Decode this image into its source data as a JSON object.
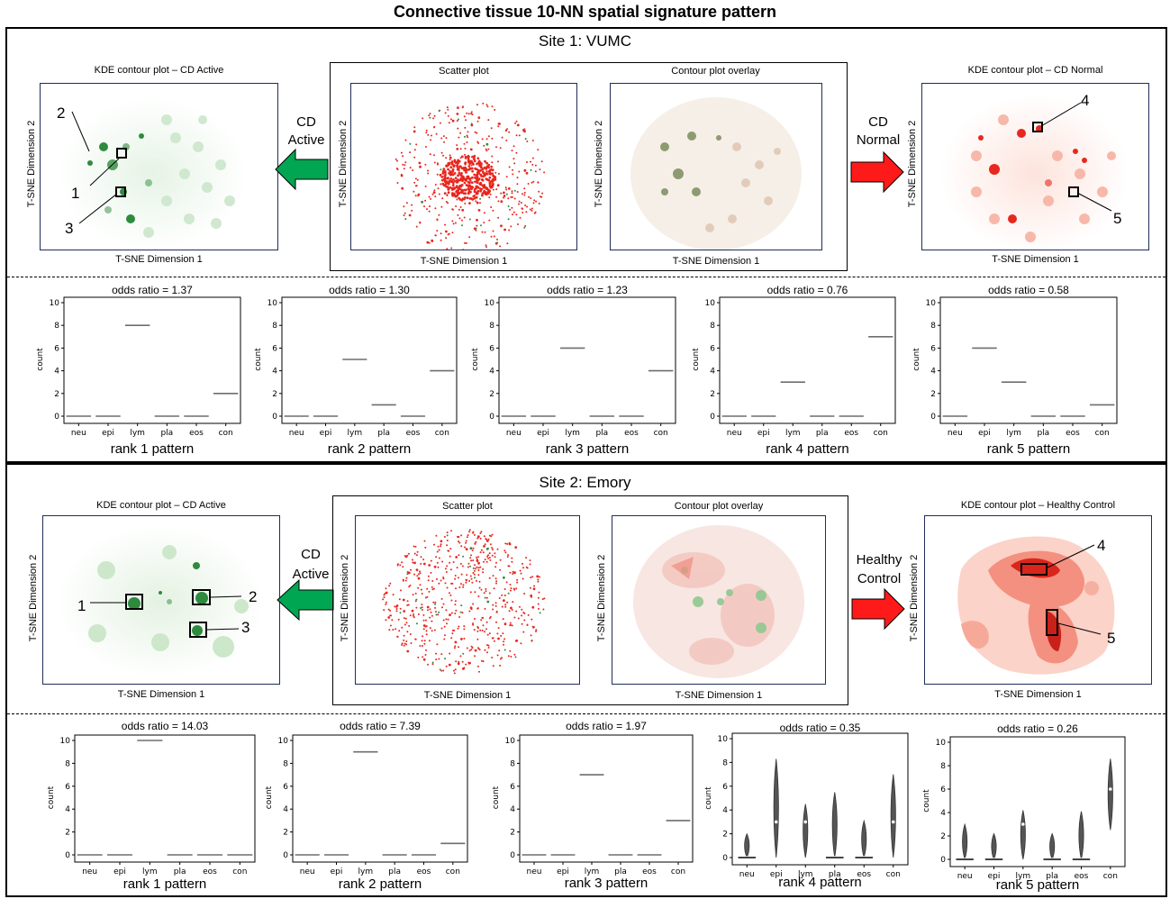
{
  "title": "Connective tissue 10-NN spatial signature pattern",
  "colors": {
    "green": "#2e8b3e",
    "red": "#e8271f",
    "arrow_green": "#00a651",
    "arrow_red": "#ff1a1a"
  },
  "site1": {
    "title": "Site 1: VUMC",
    "left_panel_title": "KDE contour plot – CD Active",
    "scatter_title": "Scatter plot",
    "overlay_title": "Contour plot overlay",
    "right_panel_title": "KDE contour plot – CD Normal",
    "left_arrow_label_1": "CD",
    "left_arrow_label_2": "Active",
    "right_arrow_label_1": "CD",
    "right_arrow_label_2": "Normal",
    "xlabel": "T-SNE Dimension 1",
    "ylabel": "T-SNE Dimension 2",
    "markers": [
      "1",
      "2",
      "3",
      "4",
      "5"
    ]
  },
  "site2": {
    "title": "Site 2: Emory",
    "left_panel_title": "KDE contour plot – CD Active",
    "scatter_title": "Scatter plot",
    "overlay_title": "Contour plot overlay",
    "right_panel_title": "KDE contour plot – Healthy Control",
    "left_arrow_label_1": "CD",
    "left_arrow_label_2": "Active",
    "right_arrow_label_1": "Healthy",
    "right_arrow_label_2": "Control",
    "xlabel": "T-SNE Dimension 1",
    "ylabel": "T-SNE Dimension 2",
    "markers": [
      "1",
      "2",
      "3",
      "4",
      "5"
    ]
  },
  "chart_data": [
    {
      "type": "bar",
      "subtype": "violin",
      "site": "Site 1: VUMC",
      "title": "odds ratio = 1.37",
      "caption": "rank 1 pattern",
      "categories": [
        "neu",
        "epi",
        "lym",
        "pla",
        "eos",
        "con"
      ],
      "values": [
        0,
        0,
        8,
        0,
        0,
        2
      ],
      "ylabel": "count",
      "ylim": [
        0,
        10
      ],
      "yticks": [
        0,
        2,
        4,
        6,
        8,
        10
      ]
    },
    {
      "type": "bar",
      "subtype": "violin",
      "site": "Site 1: VUMC",
      "title": "odds ratio = 1.30",
      "caption": "rank 2 pattern",
      "categories": [
        "neu",
        "epi",
        "lym",
        "pla",
        "eos",
        "con"
      ],
      "values": [
        0,
        0,
        5,
        1,
        0,
        4
      ],
      "ylabel": "count",
      "ylim": [
        0,
        10
      ],
      "yticks": [
        0,
        2,
        4,
        6,
        8,
        10
      ]
    },
    {
      "type": "bar",
      "subtype": "violin",
      "site": "Site 1: VUMC",
      "title": "odds ratio = 1.23",
      "caption": "rank 3 pattern",
      "categories": [
        "neu",
        "epi",
        "lym",
        "pla",
        "eos",
        "con"
      ],
      "values": [
        0,
        0,
        6,
        0,
        0,
        4
      ],
      "ylabel": "count",
      "ylim": [
        0,
        10
      ],
      "yticks": [
        0,
        2,
        4,
        6,
        8,
        10
      ]
    },
    {
      "type": "bar",
      "subtype": "violin",
      "site": "Site 1: VUMC",
      "title": "odds ratio = 0.76",
      "caption": "rank 4 pattern",
      "categories": [
        "neu",
        "epi",
        "lym",
        "pla",
        "eos",
        "con"
      ],
      "values": [
        0,
        0,
        3,
        0,
        0,
        7
      ],
      "ylabel": "count",
      "ylim": [
        0,
        10
      ],
      "yticks": [
        0,
        2,
        4,
        6,
        8,
        10
      ]
    },
    {
      "type": "bar",
      "subtype": "violin",
      "site": "Site 1: VUMC",
      "title": "odds ratio = 0.58",
      "caption": "rank 5 pattern",
      "categories": [
        "neu",
        "epi",
        "lym",
        "pla",
        "eos",
        "con"
      ],
      "values": [
        0,
        6,
        3,
        0,
        0,
        1
      ],
      "ylabel": "count",
      "ylim": [
        0,
        10
      ],
      "yticks": [
        0,
        2,
        4,
        6,
        8,
        10
      ]
    },
    {
      "type": "bar",
      "subtype": "violin",
      "site": "Site 2: Emory",
      "title": "odds ratio = 14.03",
      "caption": "rank 1 pattern",
      "categories": [
        "neu",
        "epi",
        "lym",
        "pla",
        "eos",
        "con"
      ],
      "values": [
        0,
        0,
        10,
        0,
        0,
        0
      ],
      "ylabel": "count",
      "ylim": [
        0,
        10
      ],
      "yticks": [
        0,
        2,
        4,
        6,
        8,
        10
      ]
    },
    {
      "type": "bar",
      "subtype": "violin",
      "site": "Site 2: Emory",
      "title": "odds ratio = 7.39",
      "caption": "rank 2 pattern",
      "categories": [
        "neu",
        "epi",
        "lym",
        "pla",
        "eos",
        "con"
      ],
      "values": [
        0,
        0,
        9,
        0,
        0,
        1
      ],
      "ylabel": "count",
      "ylim": [
        0,
        10
      ],
      "yticks": [
        0,
        2,
        4,
        6,
        8,
        10
      ]
    },
    {
      "type": "bar",
      "subtype": "violin",
      "site": "Site 2: Emory",
      "title": "odds ratio = 1.97",
      "caption": "rank 3 pattern",
      "categories": [
        "neu",
        "epi",
        "lym",
        "pla",
        "eos",
        "con"
      ],
      "values": [
        0,
        0,
        7,
        0,
        0,
        3
      ],
      "ylabel": "count",
      "ylim": [
        0,
        10
      ],
      "yticks": [
        0,
        2,
        4,
        6,
        8,
        10
      ]
    },
    {
      "type": "bar",
      "subtype": "violin",
      "site": "Site 2: Emory",
      "title": "odds ratio = 0.35",
      "caption": "rank 4 pattern",
      "categories": [
        "neu",
        "epi",
        "lym",
        "pla",
        "eos",
        "con"
      ],
      "values": [
        0,
        3,
        3,
        0,
        0,
        3
      ],
      "ranges": [
        [
          0,
          2
        ],
        [
          0,
          8.3
        ],
        [
          0,
          4.5
        ],
        [
          0,
          5.5
        ],
        [
          0,
          3.1
        ],
        [
          0,
          7
        ]
      ],
      "ylabel": "count",
      "ylim": [
        0,
        10
      ],
      "yticks": [
        0,
        2,
        4,
        6,
        8,
        10
      ]
    },
    {
      "type": "bar",
      "subtype": "violin",
      "site": "Site 2: Emory",
      "title": "odds ratio = 0.26",
      "caption": "rank 5 pattern",
      "categories": [
        "neu",
        "epi",
        "lym",
        "pla",
        "eos",
        "con"
      ],
      "values": [
        0,
        0,
        3,
        0,
        0,
        6
      ],
      "ranges": [
        [
          0,
          3
        ],
        [
          0,
          2.2
        ],
        [
          0,
          4.2
        ],
        [
          0,
          2.2
        ],
        [
          0,
          4.1
        ],
        [
          2.5,
          8.6
        ]
      ],
      "ylabel": "count",
      "ylim": [
        0,
        10
      ],
      "yticks": [
        0,
        2,
        4,
        6,
        8,
        10
      ]
    }
  ]
}
